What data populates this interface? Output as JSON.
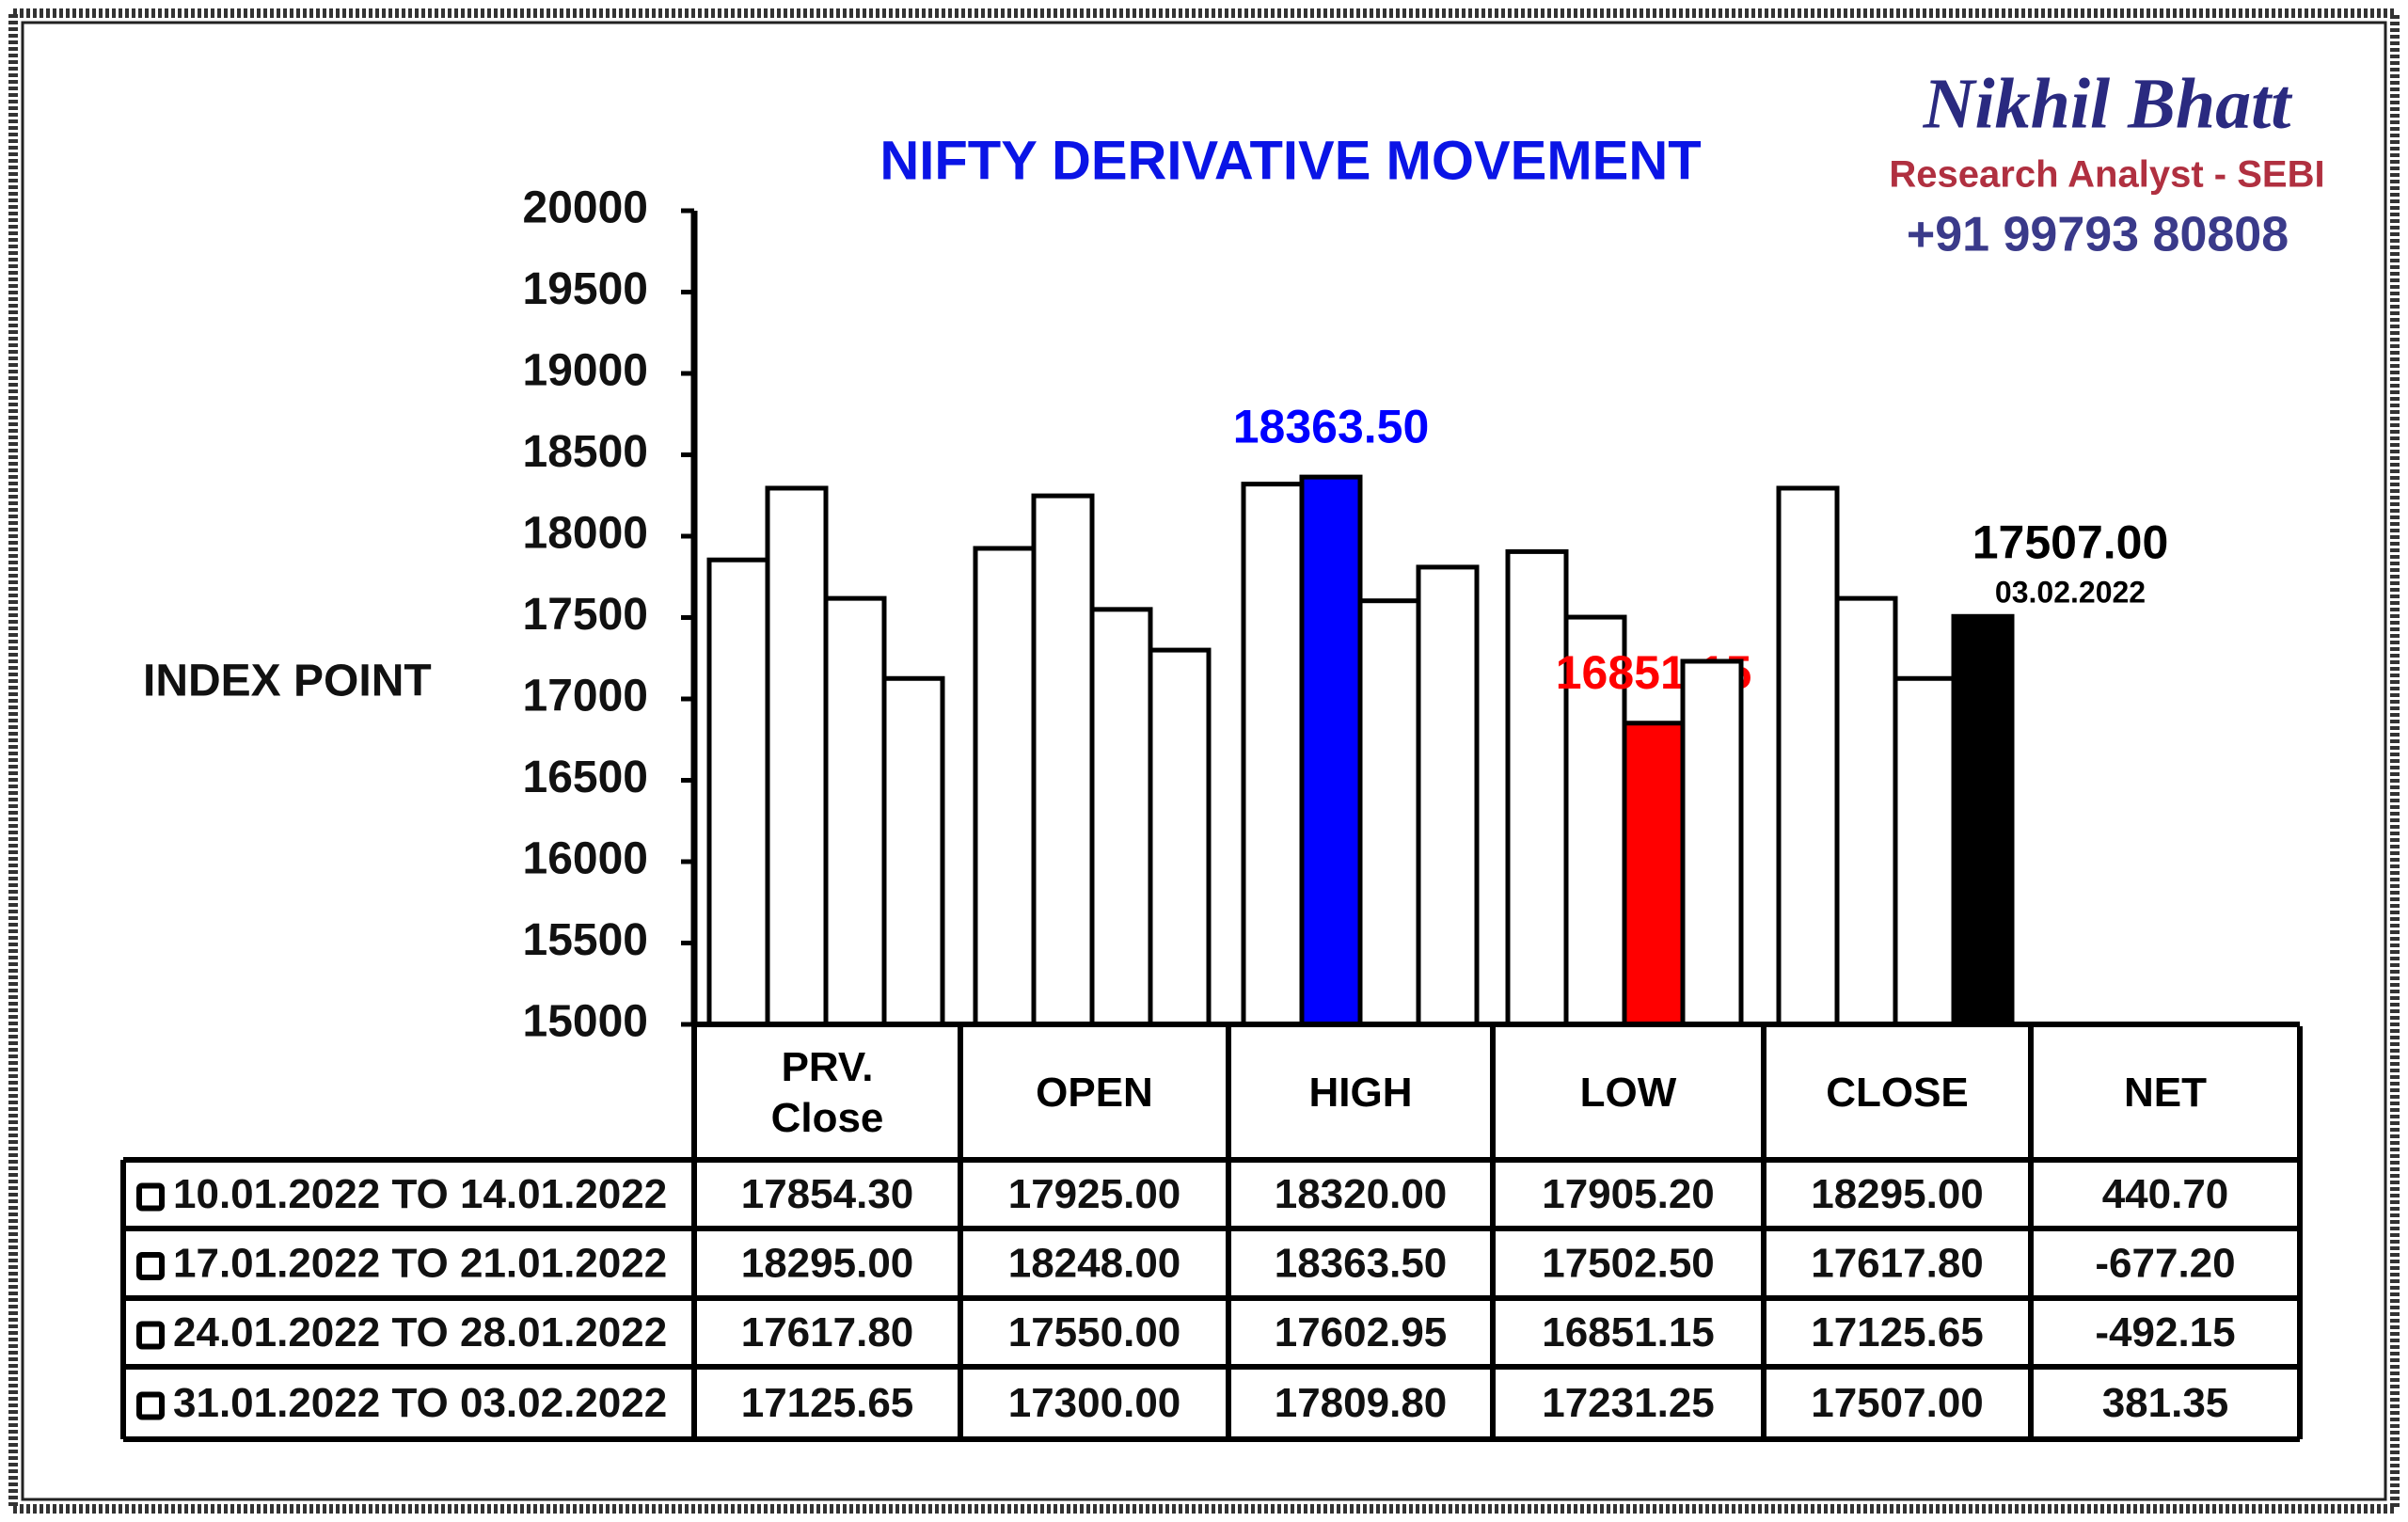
{
  "brand": {
    "name": "Nikhil Bhatt",
    "role": "Research Analyst - SEBI",
    "phone": "+91 99793 80808"
  },
  "chart_data": {
    "type": "bar",
    "title": "NIFTY DERIVATIVE MOVEMENT",
    "y_label": "INDEX POINT",
    "categories": [
      "PRV. Close",
      "OPEN",
      "HIGH",
      "LOW",
      "CLOSE"
    ],
    "net_header": "NET",
    "ylim": [
      15000,
      20000
    ],
    "yticks": [
      15000,
      15500,
      16000,
      16500,
      17000,
      17500,
      18000,
      18500,
      19000,
      19500,
      20000
    ],
    "series": [
      {
        "name": "10.01.2022 TO 14.01.2022",
        "colors": [
          "#ffffff",
          "#ffffff",
          "#ffffff",
          "#ffffff",
          "#ffffff"
        ],
        "values": [
          17854.3,
          17925,
          18320,
          17905.2,
          18295
        ],
        "value_labels": [
          "17854.30",
          "17925.00",
          "18320.00",
          "17905.20",
          "18295.00"
        ],
        "net": 440.7,
        "net_label": "440.70"
      },
      {
        "name": "17.01.2022 TO 21.01.2022",
        "colors": [
          "#ffffff",
          "#ffffff",
          "#0000ff",
          "#ffffff",
          "#ffffff"
        ],
        "values": [
          18295,
          18248,
          18363.5,
          17502.5,
          17617.8
        ],
        "value_labels": [
          "18295.00",
          "18248.00",
          "18363.50",
          "17502.50",
          "17617.80"
        ],
        "net": -677.2,
        "net_label": "-677.20"
      },
      {
        "name": "24.01.2022 TO 28.01.2022",
        "colors": [
          "#ffffff",
          "#ffffff",
          "#ffffff",
          "#ff0000",
          "#ffffff"
        ],
        "values": [
          17617.8,
          17550,
          17602.95,
          16851.15,
          17125.65
        ],
        "value_labels": [
          "17617.80",
          "17550.00",
          "17602.95",
          "16851.15",
          "17125.65"
        ],
        "net": -492.15,
        "net_label": "-492.15"
      },
      {
        "name": "31.01.2022 TO 03.02.2022",
        "colors": [
          "#ffffff",
          "#ffffff",
          "#ffffff",
          "#ffffff",
          "#000000"
        ],
        "values": [
          17125.65,
          17300,
          17809.8,
          17231.25,
          17507
        ],
        "value_labels": [
          "17125.65",
          "17300.00",
          "17809.80",
          "17231.25",
          "17507.00"
        ],
        "net": 381.35,
        "net_label": "381.35",
        "note": "03.02.2022"
      }
    ]
  }
}
